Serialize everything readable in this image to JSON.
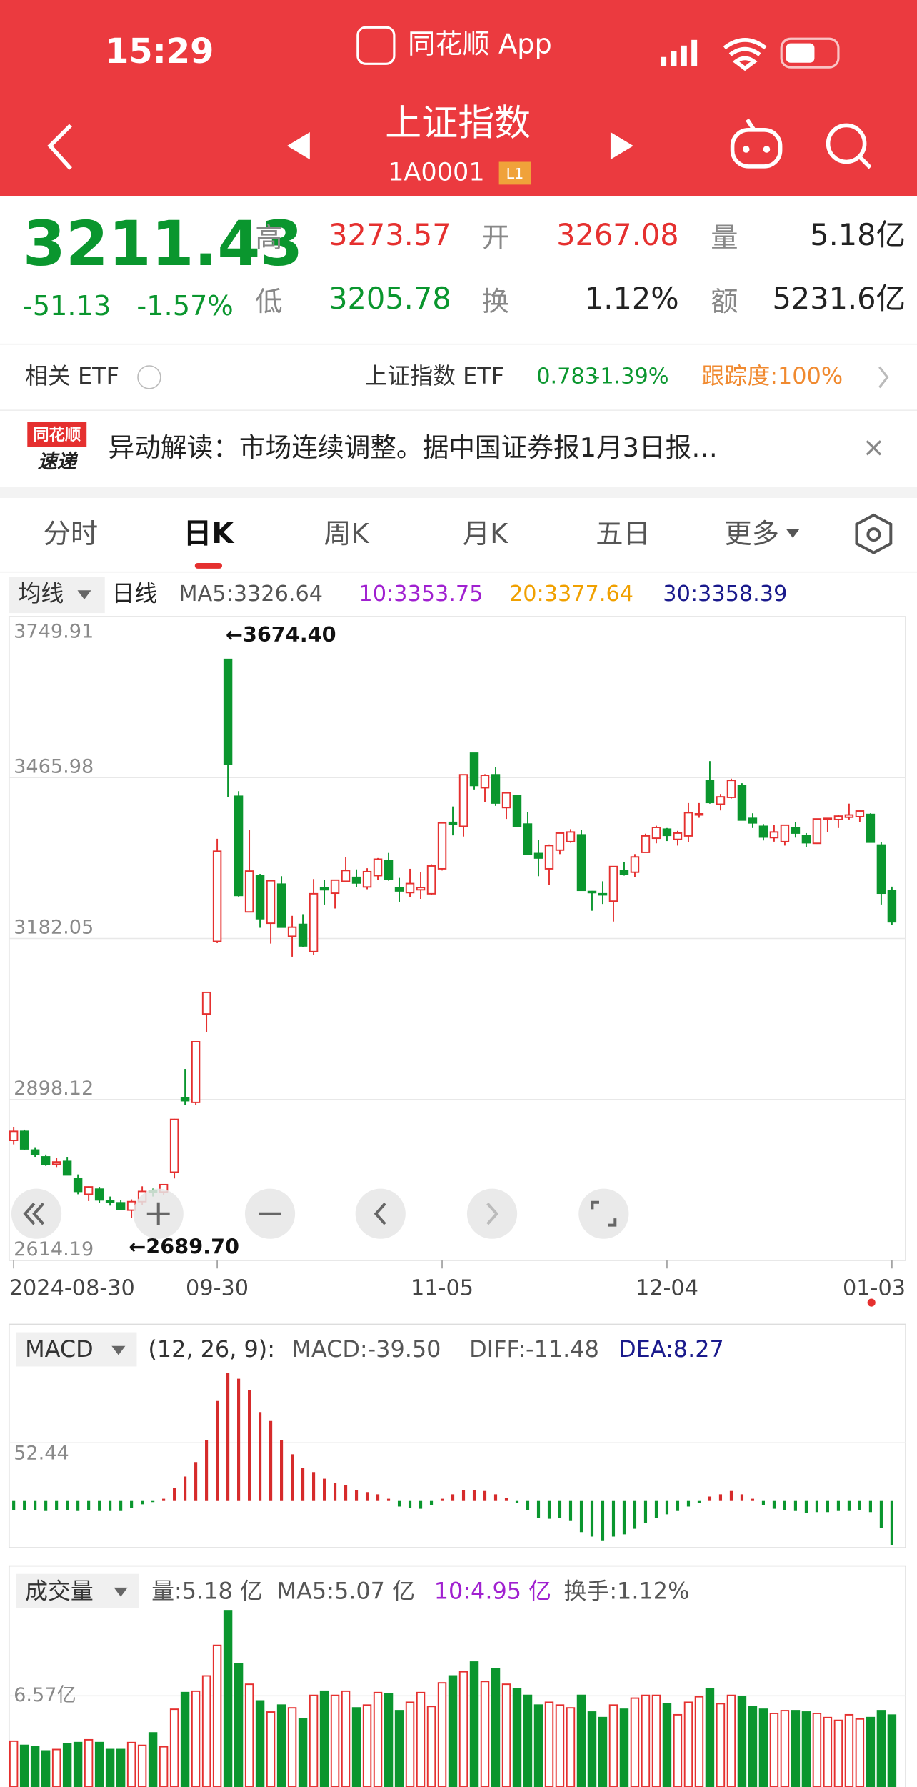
{
  "status_bar": {
    "time": "15:29",
    "app": "同花顺 App"
  },
  "header": {
    "title": "上证指数",
    "code": "1A0001",
    "badge": "L1"
  },
  "quote": {
    "price": "3211.43",
    "change": "-51.13",
    "change_pct": "-1.57%",
    "fields": [
      {
        "label": "高",
        "value": "3273.57"
      },
      {
        "label": "开",
        "value": "3267.08"
      },
      {
        "label": "量",
        "value": "5.18亿"
      },
      {
        "label": "低",
        "value": "3205.78"
      },
      {
        "label": "换",
        "value": "1.12%"
      },
      {
        "label": "额",
        "value": "5231.6亿"
      }
    ]
  },
  "etf": {
    "label": "相关 ETF",
    "name": "上证指数 ETF",
    "price": "0.783",
    "change_pct": "-1.39%",
    "tracking": "跟踪度:100%"
  },
  "news": {
    "logo_top": "同花顺",
    "logo_bottom": "速递",
    "text": "异动解读：市场连续调整。据中国证券报1月3日报…"
  },
  "tabs": [
    "分时",
    "日K",
    "周K",
    "月K",
    "五日",
    "更多"
  ],
  "ma_legend": {
    "selector": "均线",
    "period": "日线",
    "ma5": "MA5:3326.64",
    "ma10": "10:3353.75",
    "ma20": "20:3377.64",
    "ma30": "30:3358.39"
  },
  "macd_legend": {
    "selector": "MACD",
    "params": "(12, 26, 9):",
    "macd": "MACD:-39.50",
    "diff": "DIFF:-11.48",
    "dea": "DEA:8.27"
  },
  "volume_legend": {
    "selector": "成交量",
    "volume": "量:5.18 亿",
    "ma5": "MA5:5.07 亿",
    "ma10": "10:4.95 亿",
    "turnover": "换手:1.12%"
  },
  "chart_data": [
    {
      "type": "candlestick",
      "annotations": [
        "←3674.40",
        "←2689.70"
      ],
      "ylim": [
        2614.19,
        3749.91
      ],
      "yticks": [
        3749.91,
        3465.98,
        3182.05,
        2898.12,
        2614.19
      ],
      "categories": [
        "2024-08-30",
        null,
        null,
        null,
        null,
        null,
        null,
        null,
        null,
        null,
        null,
        null,
        null,
        null,
        null,
        null,
        null,
        null,
        null,
        "09-30",
        null,
        null,
        null,
        null,
        null,
        null,
        null,
        null,
        null,
        null,
        null,
        null,
        null,
        null,
        null,
        null,
        null,
        null,
        null,
        null,
        "11-05",
        null,
        null,
        null,
        null,
        null,
        null,
        null,
        null,
        null,
        null,
        null,
        null,
        null,
        null,
        null,
        null,
        null,
        null,
        null,
        null,
        "12-04",
        null,
        null,
        null,
        null,
        null,
        null,
        null,
        null,
        null,
        null,
        null,
        null,
        null,
        null,
        null,
        null,
        null,
        null,
        null,
        null,
        "01-03"
      ],
      "candles": [
        [
          2826,
          2850,
          2819,
          2842
        ],
        [
          2842,
          2845,
          2809,
          2811
        ],
        [
          2809,
          2814,
          2797,
          2802
        ],
        [
          2797,
          2801,
          2781,
          2784
        ],
        [
          2784,
          2795,
          2779,
          2788
        ],
        [
          2789,
          2797,
          2765,
          2765
        ],
        [
          2759,
          2766,
          2731,
          2736
        ],
        [
          2731,
          2745,
          2719,
          2744
        ],
        [
          2740,
          2744,
          2716,
          2721
        ],
        [
          2720,
          2727,
          2711,
          2717
        ],
        [
          2716,
          2721,
          2703,
          2704
        ],
        [
          2703,
          2722,
          2689.7,
          2718
        ],
        [
          2718,
          2745,
          2712,
          2736
        ],
        [
          2737,
          2741,
          2727,
          2736
        ],
        [
          2735,
          2749,
          2730,
          2748
        ],
        [
          2770,
          2864,
          2759,
          2863
        ],
        [
          2901,
          2952,
          2889,
          2896
        ],
        [
          2893,
          3000,
          2889,
          3000
        ],
        [
          3049,
          3087,
          3017,
          3087
        ],
        [
          3177,
          3358,
          3174,
          3336
        ],
        [
          3674.4,
          3674.4,
          3431,
          3489
        ],
        [
          3433,
          3442,
          3256,
          3258
        ],
        [
          3229,
          3373,
          3229,
          3301
        ],
        [
          3293,
          3296,
          3201,
          3217
        ],
        [
          3209,
          3284,
          3173,
          3284
        ],
        [
          3278,
          3292,
          3201,
          3202
        ],
        [
          3186,
          3222,
          3150,
          3202
        ],
        [
          3207,
          3225,
          3167,
          3169
        ],
        [
          3159,
          3287,
          3153,
          3261
        ],
        [
          3272,
          3286,
          3242,
          3268
        ],
        [
          3262,
          3286,
          3235,
          3285
        ],
        [
          3283,
          3326,
          3282,
          3302
        ],
        [
          3290,
          3304,
          3273,
          3280
        ],
        [
          3273,
          3306,
          3269,
          3300
        ],
        [
          3293,
          3324,
          3285,
          3322
        ],
        [
          3319,
          3333,
          3284,
          3286
        ],
        [
          3272,
          3289,
          3247,
          3266
        ],
        [
          3263,
          3305,
          3255,
          3279
        ],
        [
          3268,
          3299,
          3252,
          3272
        ],
        [
          3261,
          3313,
          3259,
          3310
        ],
        [
          3305,
          3386,
          3302,
          3386
        ],
        [
          3387,
          3415,
          3364,
          3383
        ],
        [
          3380,
          3471,
          3362,
          3471
        ],
        [
          3509,
          3509,
          3445,
          3452
        ],
        [
          3448,
          3472,
          3423,
          3470
        ],
        [
          3471,
          3484,
          3416,
          3421
        ],
        [
          3413,
          3440,
          3393,
          3439
        ],
        [
          3434,
          3436,
          3379,
          3380
        ],
        [
          3384,
          3405,
          3330,
          3331
        ],
        [
          3332,
          3356,
          3292,
          3324
        ],
        [
          3305,
          3348,
          3277,
          3346
        ],
        [
          3338,
          3368,
          3331,
          3368
        ],
        [
          3353,
          3375,
          3351,
          3370
        ],
        [
          3365,
          3373,
          3267,
          3267
        ],
        [
          3265,
          3266,
          3231,
          3263
        ],
        [
          3261,
          3283,
          3243,
          3259
        ],
        [
          3248,
          3309,
          3212,
          3309
        ],
        [
          3302,
          3317,
          3293,
          3296
        ],
        [
          3299,
          3331,
          3290,
          3326
        ],
        [
          3334,
          3367,
          3334,
          3363
        ],
        [
          3359,
          3381,
          3350,
          3378
        ],
        [
          3375,
          3377,
          3354,
          3364
        ],
        [
          3357,
          3372,
          3346,
          3368
        ],
        [
          3363,
          3421,
          3352,
          3404
        ],
        [
          3401,
          3421,
          3395,
          3402
        ],
        [
          3461,
          3495,
          3420,
          3422
        ],
        [
          3419,
          3437,
          3408,
          3432
        ],
        [
          3431,
          3464,
          3429,
          3461
        ],
        [
          3452,
          3456,
          3391,
          3391
        ],
        [
          3394,
          3403,
          3377,
          3386
        ],
        [
          3380,
          3384,
          3355,
          3361
        ],
        [
          3360,
          3382,
          3353,
          3370
        ],
        [
          3353,
          3382,
          3346,
          3382
        ],
        [
          3377,
          3388,
          3360,
          3368
        ],
        [
          3364,
          3368,
          3343,
          3351
        ],
        [
          3350,
          3393,
          3349,
          3393
        ],
        [
          3394,
          3395,
          3370,
          3394
        ],
        [
          3392,
          3400,
          3377,
          3398
        ],
        [
          3396,
          3420,
          3392,
          3400
        ],
        [
          3397,
          3408,
          3387,
          3407
        ],
        [
          3401,
          3403,
          3351,
          3352
        ],
        [
          3347,
          3352,
          3242,
          3262
        ],
        [
          3267.08,
          3273.57,
          3205.78,
          3211.43
        ]
      ],
      "up_color": "#e5302f",
      "down_color": "#0a962e",
      "grid": true
    },
    {
      "type": "histogram",
      "ylim": [
        -42,
        120
      ],
      "yticks": [
        52.44
      ],
      "up_color": "#d62b2b",
      "down_color": "#0a962e",
      "values": [
        -8,
        -8,
        -8,
        -9,
        -8,
        -8,
        -9,
        -8,
        -9,
        -9,
        -9,
        -6,
        -3,
        -1,
        2,
        12,
        22,
        35,
        55,
        90,
        115,
        110,
        100,
        80,
        72,
        55,
        42,
        30,
        26,
        20,
        16,
        14,
        10,
        8,
        6,
        2,
        -5,
        -6,
        -7,
        -4,
        2,
        6,
        10,
        10,
        9,
        6,
        3,
        -2,
        -8,
        -15,
        -16,
        -15,
        -18,
        -28,
        -32,
        -36,
        -32,
        -30,
        -25,
        -20,
        -15,
        -12,
        -9,
        -5,
        -2,
        4,
        6,
        9,
        6,
        2,
        -4,
        -7,
        -8,
        -9,
        -11,
        -10,
        -10,
        -9,
        -9,
        -8,
        -10,
        -24,
        -39.5
      ]
    },
    {
      "type": "volume",
      "ylim": [
        0,
        12.8
      ],
      "yticks": [
        {
          "value": 6.57,
          "label": "6.57亿"
        }
      ],
      "up_color": "#e5302f",
      "down_color": "#0a962e",
      "values": [
        3.3,
        3.0,
        2.9,
        2.6,
        2.7,
        3.1,
        3.2,
        3.4,
        3.2,
        2.7,
        2.7,
        3.2,
        3.0,
        3.9,
        2.9,
        5.6,
        6.8,
        6.9,
        8.0,
        10.2,
        12.7,
        8.9,
        7.4,
        6.2,
        5.4,
        5.9,
        5.7,
        4.9,
        6.6,
        6.9,
        6.6,
        6.9,
        5.7,
        5.9,
        6.8,
        6.7,
        5.5,
        6.1,
        6.8,
        5.8,
        7.5,
        8.0,
        8.3,
        9.0,
        7.6,
        8.5,
        7.4,
        7.1,
        6.6,
        5.9,
        6.1,
        5.9,
        5.7,
        6.6,
        5.4,
        5.0,
        5.9,
        5.6,
        6.4,
        6.6,
        6.6,
        6.0,
        5.2,
        6.1,
        6.5,
        7.1,
        6.0,
        6.6,
        6.5,
        5.8,
        5.6,
        5.3,
        5.5,
        5.5,
        5.4,
        5.3,
        5.0,
        4.8,
        5.2,
        4.9,
        5.0,
        5.5,
        5.18
      ]
    }
  ]
}
